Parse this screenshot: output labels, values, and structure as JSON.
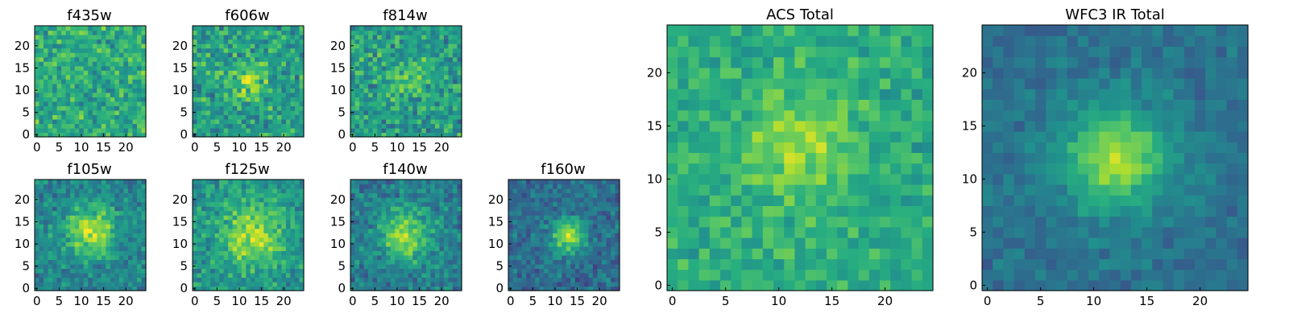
{
  "figure": {
    "colormap": "viridis",
    "background": "#ffffff"
  },
  "chart_data": [
    {
      "id": "f435w",
      "type": "heatmap",
      "title": "f435w",
      "grid_size": 25,
      "x_ticks": [
        "0",
        "5",
        "10",
        "15",
        "20"
      ],
      "y_ticks": [
        "0",
        "5",
        "10",
        "15",
        "20"
      ],
      "peak_row": 12,
      "peak_col": 12,
      "source_strength": 0.0,
      "source_radius": 4.0,
      "background_level": 0.62,
      "noise_amplitude": 0.24,
      "seed": 11
    },
    {
      "id": "f606w",
      "type": "heatmap",
      "title": "f606w",
      "grid_size": 25,
      "x_ticks": [
        "0",
        "5",
        "10",
        "15",
        "20"
      ],
      "y_ticks": [
        "0",
        "5",
        "10",
        "15",
        "20"
      ],
      "peak_row": 12,
      "peak_col": 12,
      "source_strength": 0.25,
      "source_radius": 3.0,
      "background_level": 0.56,
      "noise_amplitude": 0.26,
      "seed": 23
    },
    {
      "id": "f814w",
      "type": "heatmap",
      "title": "f814w",
      "grid_size": 25,
      "x_ticks": [
        "0",
        "5",
        "10",
        "15",
        "20"
      ],
      "y_ticks": [
        "0",
        "5",
        "10",
        "15",
        "20"
      ],
      "peak_row": 13,
      "peak_col": 13,
      "source_strength": 0.22,
      "source_radius": 3.0,
      "background_level": 0.55,
      "noise_amplitude": 0.26,
      "seed": 37
    },
    {
      "id": "f105w",
      "type": "heatmap",
      "title": "f105w",
      "grid_size": 25,
      "x_ticks": [
        "0",
        "5",
        "10",
        "15",
        "20"
      ],
      "y_ticks": [
        "0",
        "5",
        "10",
        "15",
        "20"
      ],
      "peak_row": 13,
      "peak_col": 12,
      "source_strength": 0.45,
      "source_radius": 4.0,
      "background_level": 0.45,
      "noise_amplitude": 0.2,
      "seed": 41
    },
    {
      "id": "f125w",
      "type": "heatmap",
      "title": "f125w",
      "grid_size": 25,
      "x_ticks": [
        "0",
        "5",
        "10",
        "15",
        "20"
      ],
      "y_ticks": [
        "0",
        "5",
        "10",
        "15",
        "20"
      ],
      "peak_row": 12,
      "peak_col": 13,
      "source_strength": 0.35,
      "source_radius": 5.0,
      "background_level": 0.52,
      "noise_amplitude": 0.2,
      "seed": 53
    },
    {
      "id": "f140w",
      "type": "heatmap",
      "title": "f140w",
      "grid_size": 25,
      "x_ticks": [
        "0",
        "5",
        "10",
        "15",
        "20"
      ],
      "y_ticks": [
        "0",
        "5",
        "10",
        "15",
        "20"
      ],
      "peak_row": 12,
      "peak_col": 12,
      "source_strength": 0.45,
      "source_radius": 4.0,
      "background_level": 0.42,
      "noise_amplitude": 0.2,
      "seed": 67
    },
    {
      "id": "f160w",
      "type": "heatmap",
      "title": "f160w",
      "grid_size": 25,
      "x_ticks": [
        "0",
        "5",
        "10",
        "15",
        "20"
      ],
      "y_ticks": [
        "0",
        "5",
        "10",
        "15",
        "20"
      ],
      "peak_row": 12,
      "peak_col": 13,
      "source_strength": 0.55,
      "source_radius": 2.6,
      "background_level": 0.36,
      "noise_amplitude": 0.18,
      "seed": 79
    },
    {
      "id": "acs_total",
      "type": "heatmap",
      "title": "ACS Total",
      "grid_size": 25,
      "x_ticks": [
        "0",
        "5",
        "10",
        "15",
        "20"
      ],
      "y_ticks": [
        "0",
        "5",
        "10",
        "15",
        "20"
      ],
      "peak_row": 13,
      "peak_col": 12,
      "source_strength": 0.25,
      "source_radius": 3.5,
      "background_level": 0.62,
      "noise_amplitude": 0.16,
      "seed": 97
    },
    {
      "id": "wfc3_ir_total",
      "type": "heatmap",
      "title": "WFC3 IR Total",
      "grid_size": 25,
      "x_ticks": [
        "0",
        "5",
        "10",
        "15",
        "20"
      ],
      "y_ticks": [
        "0",
        "5",
        "10",
        "15",
        "20"
      ],
      "peak_row": 12,
      "peak_col": 12,
      "source_strength": 0.5,
      "source_radius": 3.4,
      "background_level": 0.38,
      "noise_amplitude": 0.11,
      "seed": 131
    }
  ]
}
